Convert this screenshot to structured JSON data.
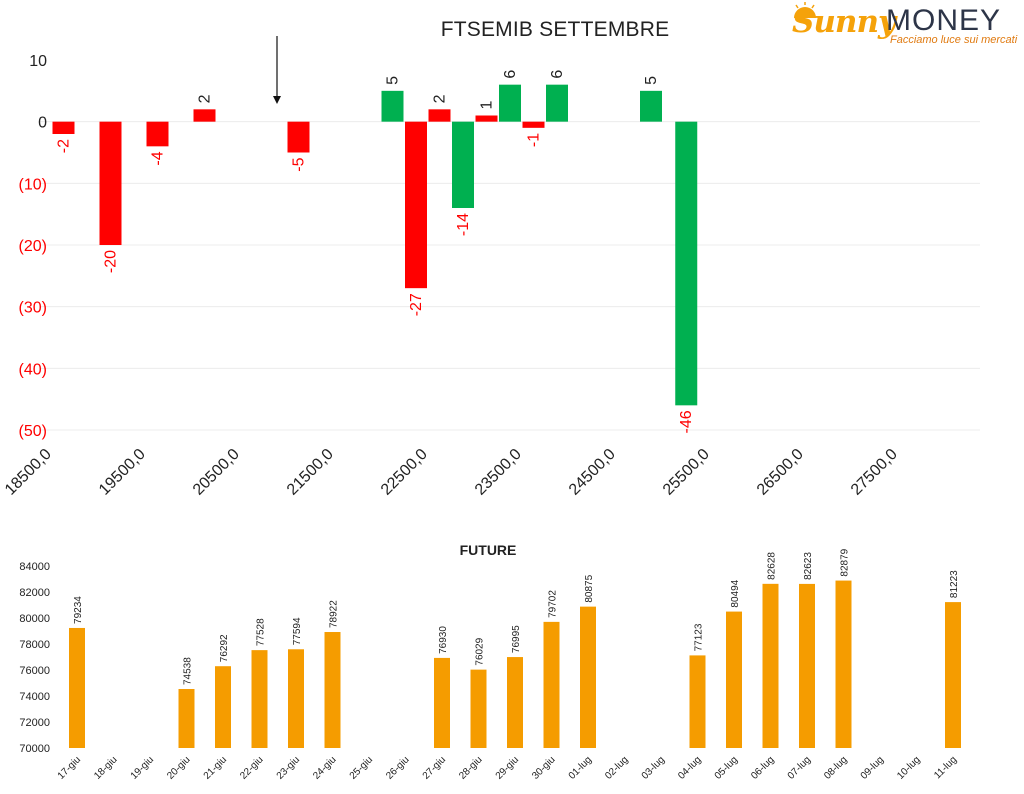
{
  "logo": {
    "brand_left": "Sunny",
    "brand_right": "MONEY",
    "tagline": "Facciamo luce sui mercati"
  },
  "colors": {
    "negative": "#ff0000",
    "positive": "#00b050",
    "future_bar": "#f59c00",
    "text_dark": "#222222"
  },
  "chart_data": [
    {
      "type": "bar",
      "title": "FTSEMIB SETTEMBRE",
      "x_tick_labels": [
        "18500,0",
        "19500,0",
        "20500,0",
        "21500,0",
        "22500,0",
        "23500,0",
        "24500,0",
        "25500,0",
        "26500,0",
        "27500,0"
      ],
      "y_tick_labels": [
        "10",
        "0",
        "(10)",
        "(20)",
        "(30)",
        "(40)",
        "(50)"
      ],
      "ylim": [
        -50,
        10
      ],
      "xlim": [
        18500,
        28500
      ],
      "grid": true,
      "annotations": [
        {
          "type": "arrow-down",
          "x": 21000
        }
      ],
      "series": [
        {
          "values": [
            {
              "x": 18750,
              "y": -2,
              "label": "-2",
              "color": "red"
            },
            {
              "x": 19250,
              "y": -20,
              "label": "-20",
              "color": "red"
            },
            {
              "x": 19750,
              "y": -4,
              "label": "-4",
              "color": "red"
            },
            {
              "x": 20250,
              "y": 2,
              "label": "2",
              "color": "red"
            },
            {
              "x": 21250,
              "y": -5,
              "label": "-5",
              "color": "red"
            },
            {
              "x": 22250,
              "y": 5,
              "label": "5",
              "color": "green"
            },
            {
              "x": 22500,
              "y": -27,
              "label": "-27",
              "color": "red"
            },
            {
              "x": 22750,
              "y": 2,
              "label": "2",
              "color": "red"
            },
            {
              "x": 23000,
              "y": -14,
              "label": "-14",
              "color": "green"
            },
            {
              "x": 23250,
              "y": 1,
              "label": "1",
              "color": "red"
            },
            {
              "x": 23500,
              "y": 6,
              "label": "6",
              "color": "green"
            },
            {
              "x": 23750,
              "y": -1,
              "label": "-1",
              "color": "red"
            },
            {
              "x": 24000,
              "y": 6,
              "label": "6",
              "color": "green"
            },
            {
              "x": 25000,
              "y": 5,
              "label": "5",
              "color": "green"
            },
            {
              "x": 25375,
              "y": -46,
              "label": "-46",
              "color": "green"
            }
          ]
        }
      ]
    },
    {
      "type": "bar",
      "title": "FUTURE",
      "categories": [
        "17-giu",
        "18-giu",
        "19-giu",
        "20-giu",
        "21-giu",
        "22-giu",
        "23-giu",
        "24-giu",
        "25-giu",
        "26-giu",
        "27-giu",
        "28-giu",
        "29-giu",
        "30-giu",
        "01-lug",
        "02-lug",
        "03-lug",
        "04-lug",
        "05-lug",
        "06-lug",
        "07-lug",
        "08-lug",
        "09-lug",
        "10-lug",
        "11-lug"
      ],
      "values": [
        79234,
        null,
        null,
        74538,
        76292,
        77528,
        77594,
        78922,
        null,
        null,
        76930,
        76029,
        76995,
        79702,
        80875,
        null,
        null,
        77123,
        80494,
        82628,
        82623,
        82879,
        null,
        null,
        81223
      ],
      "y_tick_labels": [
        "84000",
        "82000",
        "80000",
        "78000",
        "76000",
        "74000",
        "72000",
        "70000"
      ],
      "ylim": [
        70000,
        84000
      ],
      "grid": false
    }
  ]
}
